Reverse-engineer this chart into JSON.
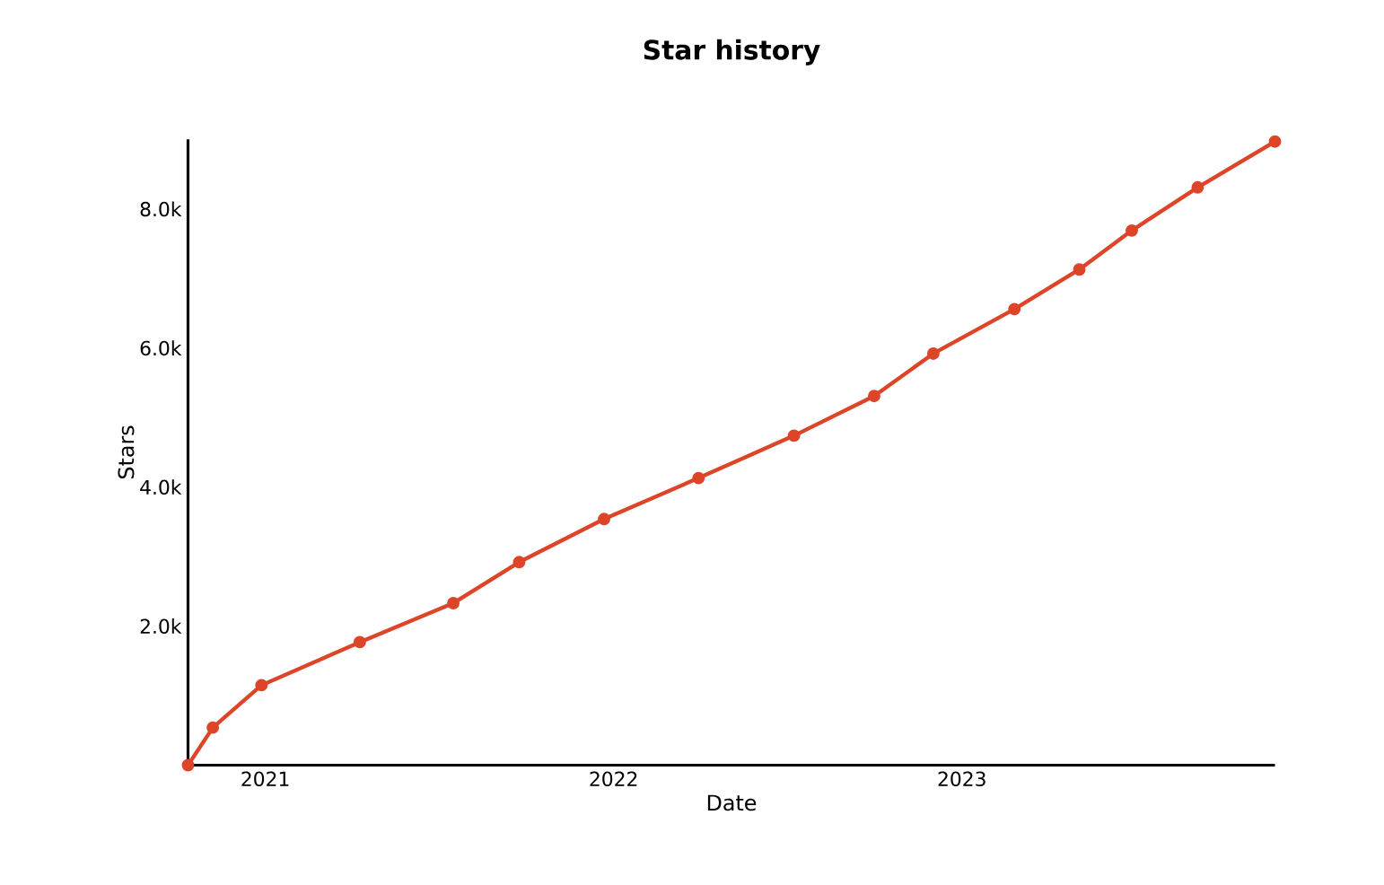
{
  "chart_data": {
    "type": "line",
    "title": "Star history",
    "xlabel": "Date",
    "ylabel": "Stars",
    "x": [
      "2020-10-12",
      "2020-11-07",
      "2020-12-28",
      "2021-04-10",
      "2021-07-17",
      "2021-09-24",
      "2021-12-22",
      "2022-03-31",
      "2022-07-09",
      "2022-10-01",
      "2022-12-02",
      "2023-02-25",
      "2023-05-04",
      "2023-06-28",
      "2023-09-05",
      "2023-11-25"
    ],
    "series": [
      {
        "color": "#dd4528",
        "values": [
          0,
          540,
          1150,
          1770,
          2330,
          2920,
          3540,
          4130,
          4740,
          5310,
          5920,
          6560,
          7130,
          7690,
          8310,
          8970
        ]
      }
    ],
    "xlim": [
      "2020-10-12",
      "2023-11-25"
    ],
    "xticks": [
      "2021",
      "2022",
      "2023"
    ],
    "ylim": [
      0,
      9000
    ],
    "yticks": [
      {
        "value": 2000,
        "label": "2.0k"
      },
      {
        "value": 4000,
        "label": "4.0k"
      },
      {
        "value": 6000,
        "label": "6.0k"
      },
      {
        "value": 8000,
        "label": "8.0k"
      }
    ],
    "grid": false,
    "marker": "circle",
    "line_style": "solid"
  }
}
